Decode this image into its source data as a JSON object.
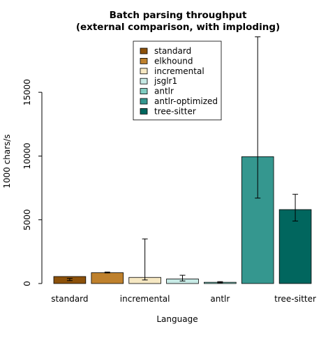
{
  "chart_data": {
    "type": "bar",
    "title_line1": "Batch parsing throughput",
    "title_line2": "(external comparison, with imploding)",
    "xlabel": "Language",
    "ylabel": "1000 chars/s",
    "ylim": [
      0,
      19500
    ],
    "yticks": [
      0,
      5000,
      10000,
      15000
    ],
    "ytick_labels": [
      "0",
      "5000",
      "10000",
      "15000"
    ],
    "xtick_labels": [
      "standard",
      "",
      "incremental",
      "",
      "antlr",
      "",
      "tree-sitter"
    ],
    "legend_position": "top-center",
    "grid": false,
    "series": [
      {
        "name": "standard",
        "value": 550,
        "err_low": 400,
        "err_high": 230,
        "color": "#8c510a"
      },
      {
        "name": "elkhound",
        "value": 850,
        "err_low": 830,
        "err_high": 900,
        "color": "#bf812d"
      },
      {
        "name": "incremental",
        "value": 480,
        "err_low": 280,
        "err_high": 3500,
        "color": "#f6e8c3"
      },
      {
        "name": "jsglr1",
        "value": 360,
        "err_low": 200,
        "err_high": 650,
        "color": "#c7eae5"
      },
      {
        "name": "antlr",
        "value": 100,
        "err_low": 60,
        "err_high": 150,
        "color": "#80cdc1"
      },
      {
        "name": "antlr-optimized",
        "value": 9950,
        "err_low": 6700,
        "err_high": 19350,
        "color": "#35978f"
      },
      {
        "name": "tree-sitter",
        "value": 5800,
        "err_low": 4900,
        "err_high": 7000,
        "color": "#01665e"
      }
    ]
  }
}
